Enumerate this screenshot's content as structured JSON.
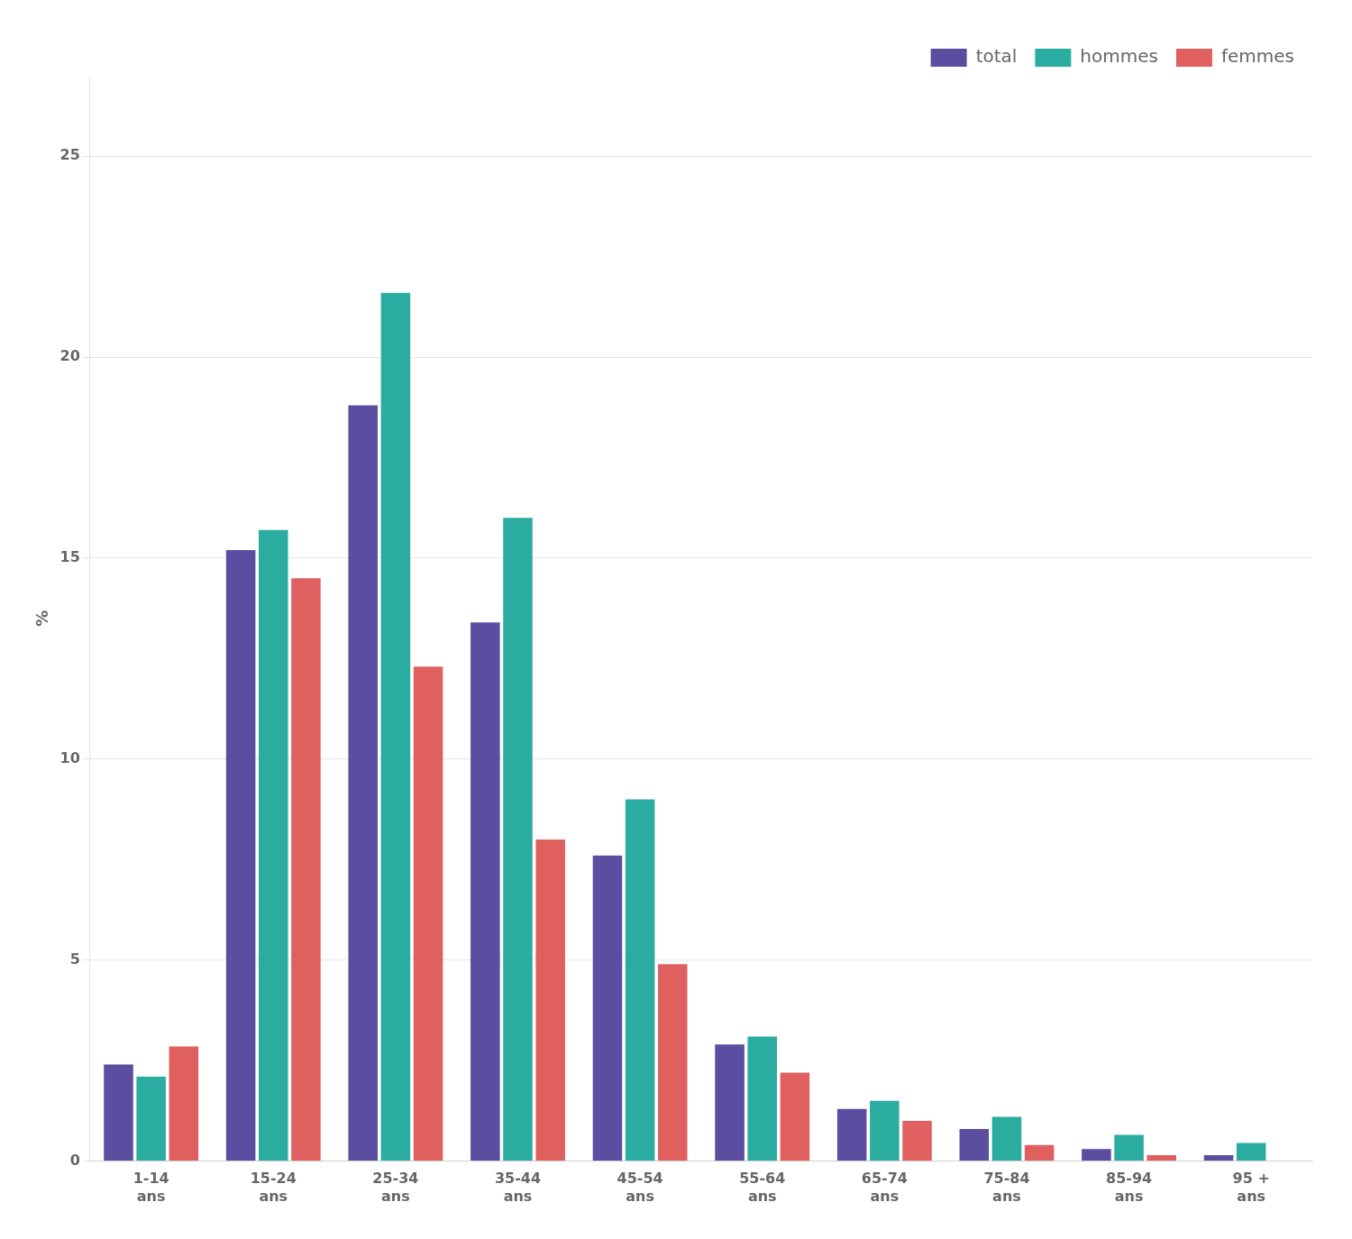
{
  "chart_data": {
    "type": "bar",
    "categories": [
      "1-14\nans",
      "15-24\nans",
      "25-34\nans",
      "35-44\nans",
      "45-54\nans",
      "55-64\nans",
      "65-74\nans",
      "75-84\nans",
      "85-94\nans",
      "95 +\nans"
    ],
    "series": [
      {
        "name": "total",
        "color": "#5b4ea0",
        "values": [
          2.4,
          15.2,
          18.8,
          13.4,
          7.6,
          2.9,
          1.3,
          0.8,
          0.3,
          0.15
        ]
      },
      {
        "name": "hommes",
        "color": "#2aada0",
        "values": [
          2.1,
          15.7,
          21.6,
          16.0,
          9.0,
          3.1,
          1.5,
          1.1,
          0.65,
          0.45
        ]
      },
      {
        "name": "femmes",
        "color": "#e06060",
        "values": [
          2.85,
          14.5,
          12.3,
          8.0,
          4.9,
          2.2,
          1.0,
          0.4,
          0.15,
          0.0
        ]
      }
    ],
    "ylabel": "%",
    "ylim": [
      0,
      27
    ],
    "yticks": [
      0,
      5,
      10,
      15,
      20,
      25
    ],
    "grid": true,
    "legend": "upper right"
  }
}
